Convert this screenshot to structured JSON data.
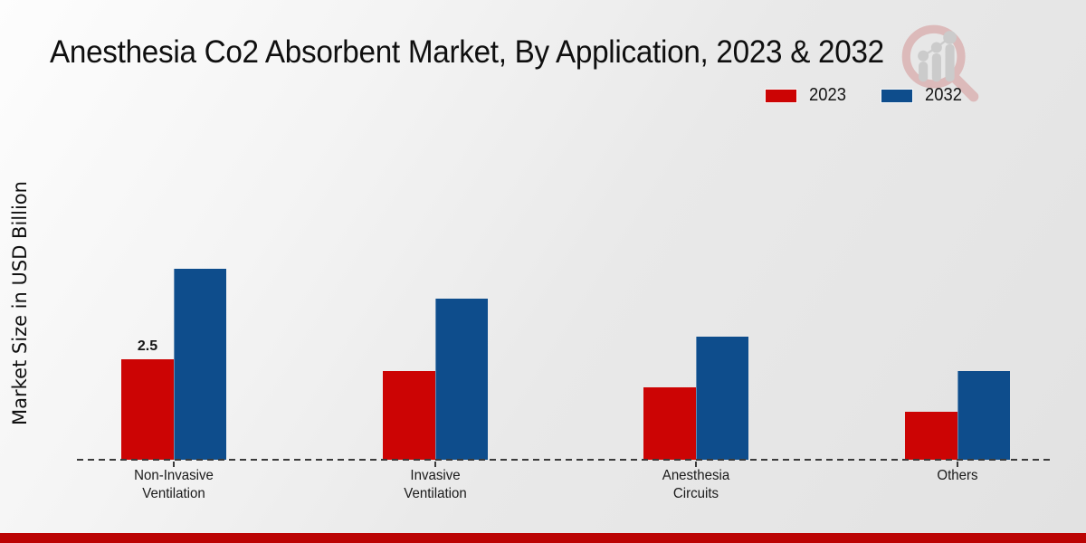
{
  "header": {
    "title": "Anesthesia Co2 Absorbent Market, By Application, 2023 & 2032"
  },
  "axis": {
    "ylabel": "Market Size in USD Billion"
  },
  "legend": {
    "items": [
      {
        "label": "2023",
        "color": "#cc0404"
      },
      {
        "label": "2032",
        "color": "#0e4d8c"
      }
    ]
  },
  "chart_data": {
    "type": "bar",
    "title": "Anesthesia Co2 Absorbent Market, By Application, 2023 & 2032",
    "ylabel": "Market Size in USD Billion",
    "categories": [
      "Non-Invasive Ventilation",
      "Invasive Ventilation",
      "Anesthesia Circuits",
      "Others"
    ],
    "category_lines": [
      [
        "Non-Invasive",
        "Ventilation"
      ],
      [
        "Invasive",
        "Ventilation"
      ],
      [
        "Anesthesia",
        "Circuits"
      ],
      [
        "Others"
      ]
    ],
    "series": [
      {
        "name": "2023",
        "color": "#cc0404",
        "values": [
          2.5,
          2.2,
          1.8,
          1.2
        ]
      },
      {
        "name": "2032",
        "color": "#0e4d8c",
        "values": [
          4.75,
          4.0,
          3.05,
          2.2
        ]
      }
    ],
    "ylim": [
      0,
      7.6
    ],
    "grid": false,
    "legend_position": "top-right",
    "baseline_style": "dashed",
    "value_labels": [
      {
        "text": "2.5",
        "category_index": 0,
        "series_index": 0
      }
    ]
  },
  "branding": {
    "watermark": "magnifier-bar-chart-logo",
    "bottom_bar_color": "#bb0404"
  }
}
